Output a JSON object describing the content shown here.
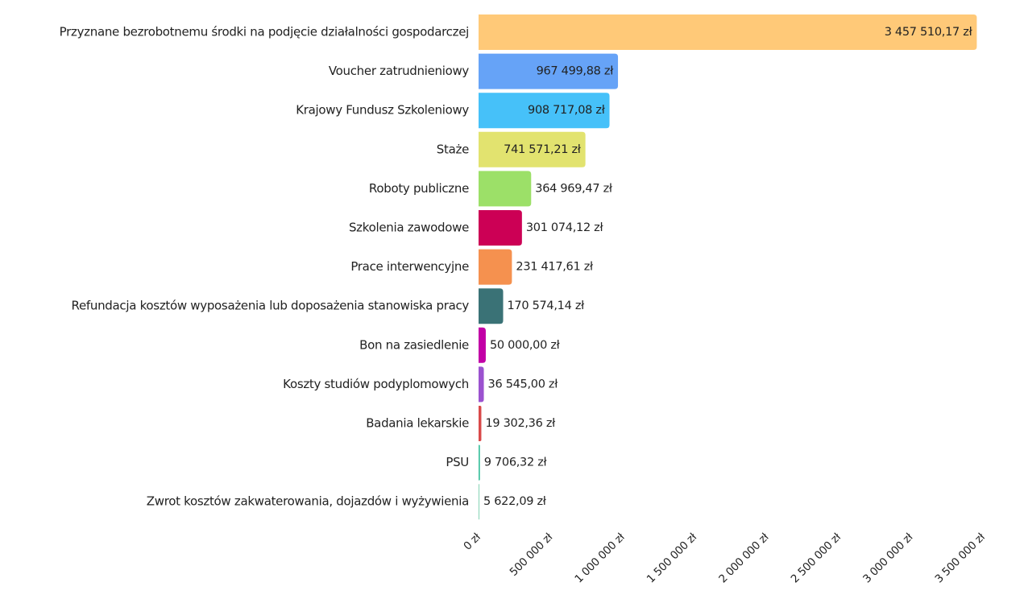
{
  "chart_data": {
    "type": "bar",
    "orientation": "horizontal",
    "categories": [
      "Przyznane bezrobotnemu środki na podjęcie działalności gospodarczej",
      "Voucher zatrudnieniowy",
      "Krajowy Fundusz Szkoleniowy",
      "Staże",
      "Roboty publiczne",
      "Szkolenia zawodowe",
      "Prace interwencyjne",
      "Refundacja kosztów wyposażenia lub doposażenia stanowiska pracy",
      "Bon na zasiedlenie",
      "Koszty studiów podyplomowych",
      "Badania lekarskie",
      "PSU",
      "Zwrot kosztów zakwaterowania, dojazdów i wyżywienia"
    ],
    "values": [
      3457510.17,
      967499.88,
      908717.08,
      741571.21,
      364969.47,
      301074.12,
      231417.61,
      170574.14,
      50000.0,
      36545.0,
      19302.36,
      9706.32,
      5622.09
    ],
    "value_labels": [
      "3 457 510,17 zł",
      "967 499,88 zł",
      "908 717,08 zł",
      "741 571,21 zł",
      "364 969,47 zł",
      "301 074,12 zł",
      "231 417,61 zł",
      "170 574,14 zł",
      "50 000,00 zł",
      "36 545,00 zł",
      "19 302,36 zł",
      "9 706,32 zł",
      "5 622,09 zł"
    ],
    "colors": [
      "#ffc978",
      "#66a3f7",
      "#46c1f9",
      "#e2e36f",
      "#9ce068",
      "#cc0055",
      "#f5914f",
      "#3a7276",
      "#c200a6",
      "#9b52cf",
      "#d94a4a",
      "#3fc29f",
      "#86d3b4"
    ],
    "xlim": [
      0,
      3500000
    ],
    "xticks": [
      {
        "value": 0,
        "label": "0 zł"
      },
      {
        "value": 500000,
        "label": "500 000 zł"
      },
      {
        "value": 1000000,
        "label": "1 000 000 zł"
      },
      {
        "value": 1500000,
        "label": "1 500 000 zł"
      },
      {
        "value": 2000000,
        "label": "2 000 000 zł"
      },
      {
        "value": 2500000,
        "label": "2 500 000 zł"
      },
      {
        "value": 3000000,
        "label": "3 000 000 zł"
      },
      {
        "value": 3500000,
        "label": "3 500 000 zł"
      }
    ],
    "grid": false
  }
}
